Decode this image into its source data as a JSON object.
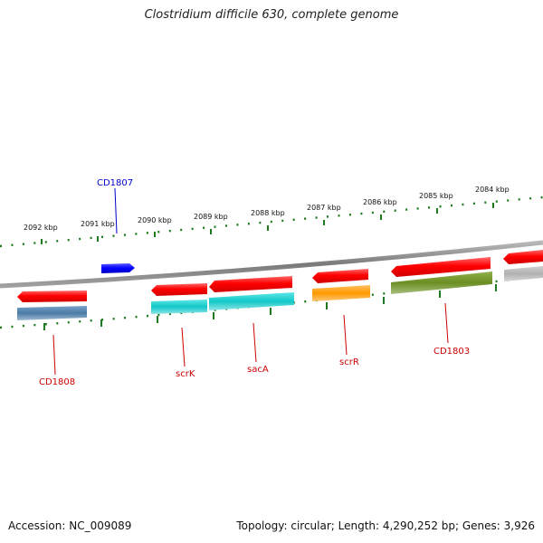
{
  "title": "Clostridium difficile 630, complete genome",
  "footer": {
    "accession": "Accession: NC_009089",
    "summary": "Topology: circular; Length: 4,290,252 bp; Genes: 3,926"
  },
  "scale_labels": [
    "2092 kbp",
    "2091 kbp",
    "2090 kbp",
    "2089 kbp",
    "2088 kbp",
    "2087 kbp",
    "2086 kbp",
    "2085 kbp",
    "2084 kbp"
  ],
  "gene_labels": {
    "cd1807": "CD1807",
    "cd1808": "CD1808",
    "scrk": "scrK",
    "saca": "sacA",
    "scrr": "scrR",
    "cd1803": "CD1803"
  },
  "colors": {
    "label_red": "#cc0000",
    "label_blue": "#0000cc",
    "tick_green": "#1e7a1e",
    "backbone": "#808080",
    "gene_red": "#ff0000",
    "gene_blue": "#0000ff",
    "cog_steelblue": "#4a7ba6",
    "cog_cyan": "#12c8c8",
    "cog_orange": "#ff9a00",
    "cog_olive": "#6b8e23",
    "cog_gray": "#b0b0b0"
  }
}
